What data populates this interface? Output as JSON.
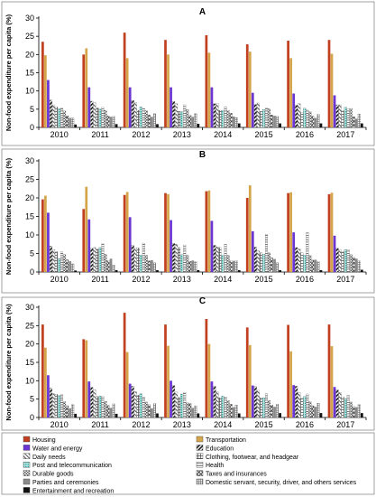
{
  "chart_data": [
    {
      "type": "bar",
      "title": "A",
      "ylabel": "Non-food expenditure per capita (%)",
      "xlabel": "",
      "ylim": [
        0,
        30
      ],
      "yticks": [
        0,
        5,
        10,
        15,
        20,
        25,
        30
      ],
      "categories": [
        "2010",
        "2011",
        "2012",
        "2013",
        "2014",
        "2015",
        "2016",
        "2017"
      ],
      "grid": false,
      "series": [
        {
          "name": "Housing",
          "values": [
            23.5,
            20,
            26,
            24,
            25.3,
            22.8,
            23.8,
            24
          ]
        },
        {
          "name": "Transportation",
          "values": [
            19.8,
            21.7,
            19,
            20,
            20.5,
            20.8,
            19,
            20.2
          ]
        },
        {
          "name": "Water and energy",
          "values": [
            13,
            11,
            11,
            11,
            11,
            9.5,
            9.3,
            8.8
          ]
        },
        {
          "name": "Education",
          "values": [
            7.5,
            7.2,
            7.4,
            7.1,
            6.5,
            6.3,
            6.1,
            6.2
          ]
        },
        {
          "name": "Daily needs",
          "values": [
            6.2,
            6.8,
            6.9,
            6.5,
            6.5,
            6.7,
            6.5,
            6.2
          ]
        },
        {
          "name": "Clothing, footwear, and headgear",
          "values": [
            5.6,
            5.4,
            4.7,
            4.4,
            4.7,
            4.4,
            4.1,
            4.6
          ]
        },
        {
          "name": "Post and telecommunication",
          "values": [
            5.1,
            5,
            5.6,
            4.3,
            4.7,
            4.9,
            5.3,
            5.5
          ]
        },
        {
          "name": "Health",
          "values": [
            5.3,
            5.5,
            5.2,
            6.2,
            5.7,
            5.4,
            4.8,
            5
          ]
        },
        {
          "name": "Durable goods",
          "values": [
            4.5,
            4.7,
            4.6,
            4.9,
            4.6,
            5.1,
            4.3,
            5.2
          ]
        },
        {
          "name": "Taxes and insurances",
          "values": [
            3.2,
            3.2,
            3.4,
            3.3,
            3.9,
            3.4,
            3.1,
            2.9
          ]
        },
        {
          "name": "Parties and ceremonies",
          "values": [
            2.6,
            2.9,
            2.9,
            2.9,
            3,
            3.2,
            2.6,
            2.4
          ]
        },
        {
          "name": "Domestic servant, security, driver, and others services",
          "values": [
            2.6,
            3,
            3.8,
            3.8,
            2.7,
            3,
            3.6,
            3.7
          ]
        },
        {
          "name": "Entertainment and recreation",
          "values": [
            0.8,
            0.9,
            0.9,
            1,
            1.1,
            1.1,
            1.1,
            1.1
          ]
        }
      ]
    },
    {
      "type": "bar",
      "title": "B",
      "ylabel": "Non-food expenditure per capita (%)",
      "xlabel": "",
      "ylim": [
        0,
        30
      ],
      "yticks": [
        0,
        5,
        10,
        15,
        20,
        25,
        30
      ],
      "categories": [
        "2010",
        "2011",
        "2012",
        "2013",
        "2014",
        "2015",
        "2016",
        "2017"
      ],
      "grid": false,
      "series": [
        {
          "name": "Housing",
          "values": [
            19.6,
            17,
            20.8,
            21.3,
            21.8,
            20,
            21.3,
            21
          ]
        },
        {
          "name": "Transportation",
          "values": [
            20.6,
            23,
            21.6,
            21,
            22,
            23.4,
            21.5,
            21.4
          ]
        },
        {
          "name": "Water and energy",
          "values": [
            16,
            14.2,
            14.8,
            14,
            13.8,
            11,
            10.7,
            9.8
          ]
        },
        {
          "name": "Education",
          "values": [
            7,
            6.4,
            7.2,
            7.7,
            7.2,
            6.7,
            6.6,
            6.4
          ]
        },
        {
          "name": "Daily needs",
          "values": [
            6,
            6.6,
            6.5,
            7.5,
            6.8,
            5.7,
            6.2,
            6
          ]
        },
        {
          "name": "Clothing, footwear, and headgear",
          "values": [
            5.5,
            6.2,
            6.5,
            6.6,
            6.6,
            5.2,
            5.2,
            5.5
          ]
        },
        {
          "name": "Post and telecommunication",
          "values": [
            3.6,
            6.6,
            4.6,
            4.7,
            4.5,
            4.8,
            4.6,
            6
          ]
        },
        {
          "name": "Health",
          "values": [
            5.5,
            7.6,
            7.8,
            7.3,
            7.5,
            10.2,
            10.6,
            6
          ]
        },
        {
          "name": "Durable goods",
          "values": [
            4.7,
            4.8,
            4.5,
            4.5,
            4.5,
            5.2,
            4.5,
            4.7
          ]
        },
        {
          "name": "Taxes and insurances",
          "values": [
            3.3,
            3,
            3,
            2.9,
            3,
            3.8,
            3.2,
            4
          ]
        },
        {
          "name": "Parties and ceremonies",
          "values": [
            2.9,
            3.6,
            3.2,
            3.1,
            3,
            3.5,
            3.3,
            3.6
          ]
        },
        {
          "name": "Domestic servant, security, driver, and others services",
          "values": [
            2.2,
            1.9,
            2.5,
            2.8,
            3,
            2.5,
            2.8,
            3
          ]
        },
        {
          "name": "Entertainment and recreation",
          "values": [
            0.4,
            0.5,
            0.5,
            0.5,
            0.5,
            0.5,
            0.5,
            0.6
          ]
        }
      ]
    },
    {
      "type": "bar",
      "title": "C",
      "ylabel": "Non-food expenditure per capita (%)",
      "xlabel": "",
      "ylim": [
        0,
        30
      ],
      "yticks": [
        0,
        5,
        10,
        15,
        20,
        25,
        30
      ],
      "categories": [
        "2010",
        "2011",
        "2012",
        "2013",
        "2014",
        "2015",
        "2016",
        "2017"
      ],
      "grid": false,
      "series": [
        {
          "name": "Housing",
          "values": [
            25.3,
            21.3,
            28.5,
            25.3,
            26.8,
            24.5,
            25.2,
            25.3
          ]
        },
        {
          "name": "Transportation",
          "values": [
            19,
            21,
            17.8,
            19.5,
            20,
            19.7,
            18,
            19.4
          ]
        },
        {
          "name": "Water and energy",
          "values": [
            11.5,
            9.8,
            9.2,
            10,
            9.8,
            8.7,
            8.8,
            8.3
          ]
        },
        {
          "name": "Education",
          "values": [
            8,
            8.2,
            8.5,
            8.7,
            8.5,
            8.4,
            8.5,
            7.5
          ]
        },
        {
          "name": "Daily needs",
          "values": [
            6.5,
            7.5,
            7,
            6.9,
            7,
            7.4,
            6.8,
            6.8
          ]
        },
        {
          "name": "Clothing, footwear, and headgear",
          "values": [
            6.3,
            5.7,
            6.1,
            5.5,
            5.4,
            5.4,
            5.3,
            5.6
          ]
        },
        {
          "name": "Post and telecommunication",
          "values": [
            6,
            5.8,
            6.5,
            6.4,
            5.8,
            5.4,
            5.7,
            5.1
          ]
        },
        {
          "name": "Health",
          "values": [
            6.2,
            5.8,
            5.5,
            6.8,
            5.6,
            6.5,
            6.4,
            6
          ]
        },
        {
          "name": "Durable goods",
          "values": [
            4.3,
            4.4,
            4.2,
            4,
            4.6,
            4.6,
            4.3,
            4.2
          ]
        },
        {
          "name": "Taxes and insurances",
          "values": [
            3.2,
            3.3,
            3.5,
            3.8,
            3.6,
            3.4,
            3.2,
            3
          ]
        },
        {
          "name": "Parties and ceremonies",
          "values": [
            2.5,
            2.6,
            2.5,
            2.6,
            2.8,
            2.9,
            2.9,
            2.8
          ]
        },
        {
          "name": "Domestic servant, security, driver, and others services",
          "values": [
            3.5,
            3.7,
            3.8,
            3.2,
            3.4,
            3.6,
            3.9,
            3.5
          ]
        },
        {
          "name": "Entertainment and recreation",
          "values": [
            1,
            1,
            1.1,
            1.1,
            1.1,
            1.2,
            1.2,
            1.2
          ]
        }
      ]
    }
  ],
  "legend": {
    "placement": "bottom",
    "items": [
      {
        "label": "Housing",
        "pattern": "solid",
        "color": "#c0401f"
      },
      {
        "label": "Transportation",
        "pattern": "solid",
        "color": "#d4a54a"
      },
      {
        "label": "Water and energy",
        "pattern": "solid",
        "color": "#6a35d3"
      },
      {
        "label": "Education",
        "pattern": "diag-black",
        "color": "#1a1a1a"
      },
      {
        "label": "Daily needs",
        "pattern": "hatch",
        "color": "#555555"
      },
      {
        "label": "Clothing, footwear, and headgear",
        "pattern": "grid",
        "color": "#555555"
      },
      {
        "label": "Post and telecommunication",
        "pattern": "dots-teal",
        "color": "#17a098"
      },
      {
        "label": "Health",
        "pattern": "hlines",
        "color": "#555555"
      },
      {
        "label": "Durable goods",
        "pattern": "checker",
        "color": "#555555"
      },
      {
        "label": "Taxes and insurances",
        "pattern": "diamond",
        "color": "#333333"
      },
      {
        "label": "Parties and ceremonies",
        "pattern": "solid",
        "color": "#8a8a8a"
      },
      {
        "label": "Domestic servant, security, driver, and others services",
        "pattern": "grid-fine",
        "color": "#555555"
      },
      {
        "label": "Entertainment and recreation",
        "pattern": "solid",
        "color": "#111111"
      }
    ]
  }
}
